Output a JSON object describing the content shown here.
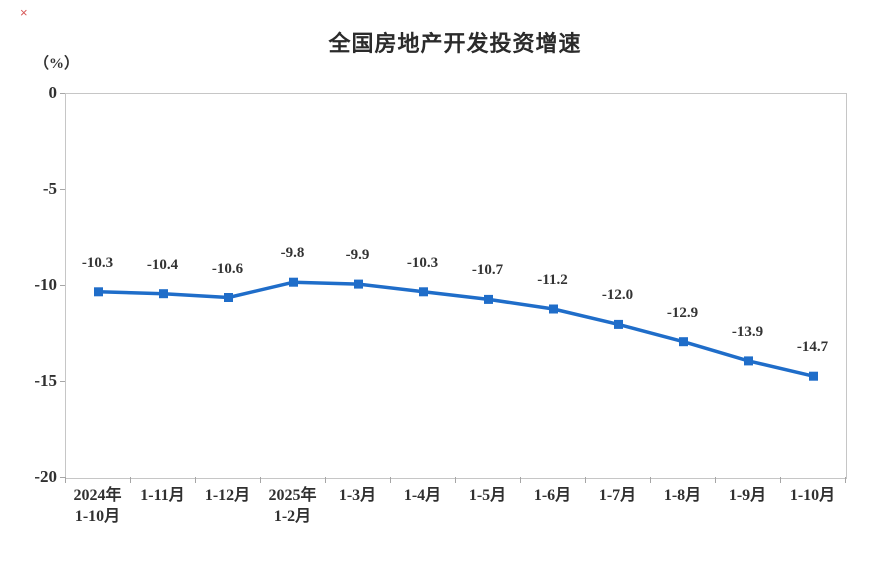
{
  "page": {
    "artifact_mark": "×"
  },
  "chart_data": {
    "type": "line",
    "title": "全国房地产开发投资增速",
    "ylabel": "（%）",
    "xlabel": "",
    "categories": [
      [
        "2024年",
        "1-10月"
      ],
      [
        "1-11月"
      ],
      [
        "1-12月"
      ],
      [
        "2025年",
        "1-2月"
      ],
      [
        "1-3月"
      ],
      [
        "1-4月"
      ],
      [
        "1-5月"
      ],
      [
        "1-6月"
      ],
      [
        "1-7月"
      ],
      [
        "1-8月"
      ],
      [
        "1-9月"
      ],
      [
        "1-10月"
      ]
    ],
    "series": [
      {
        "name": "全国房地产开发投资增速",
        "values": [
          -10.3,
          -10.4,
          -10.6,
          -9.8,
          -9.9,
          -10.3,
          -10.7,
          -11.2,
          -12.0,
          -12.9,
          -13.9,
          -14.7
        ],
        "labels": [
          "-10.3",
          "-10.4",
          "-10.6",
          "-9.8",
          "-9.9",
          "-10.3",
          "-10.7",
          "-11.2",
          "-12.0",
          "-12.9",
          "-13.9",
          "-14.7"
        ]
      }
    ],
    "ylim": [
      -20,
      0
    ],
    "y_ticks": [
      0,
      -5,
      -10,
      -15,
      -20
    ],
    "grid": false,
    "legend_position": "none",
    "marker": "square",
    "colors": {
      "line": "#1f6dc9",
      "axis": "#c6c6c6",
      "tick": "#a6a6a6",
      "text": "#303030"
    }
  }
}
